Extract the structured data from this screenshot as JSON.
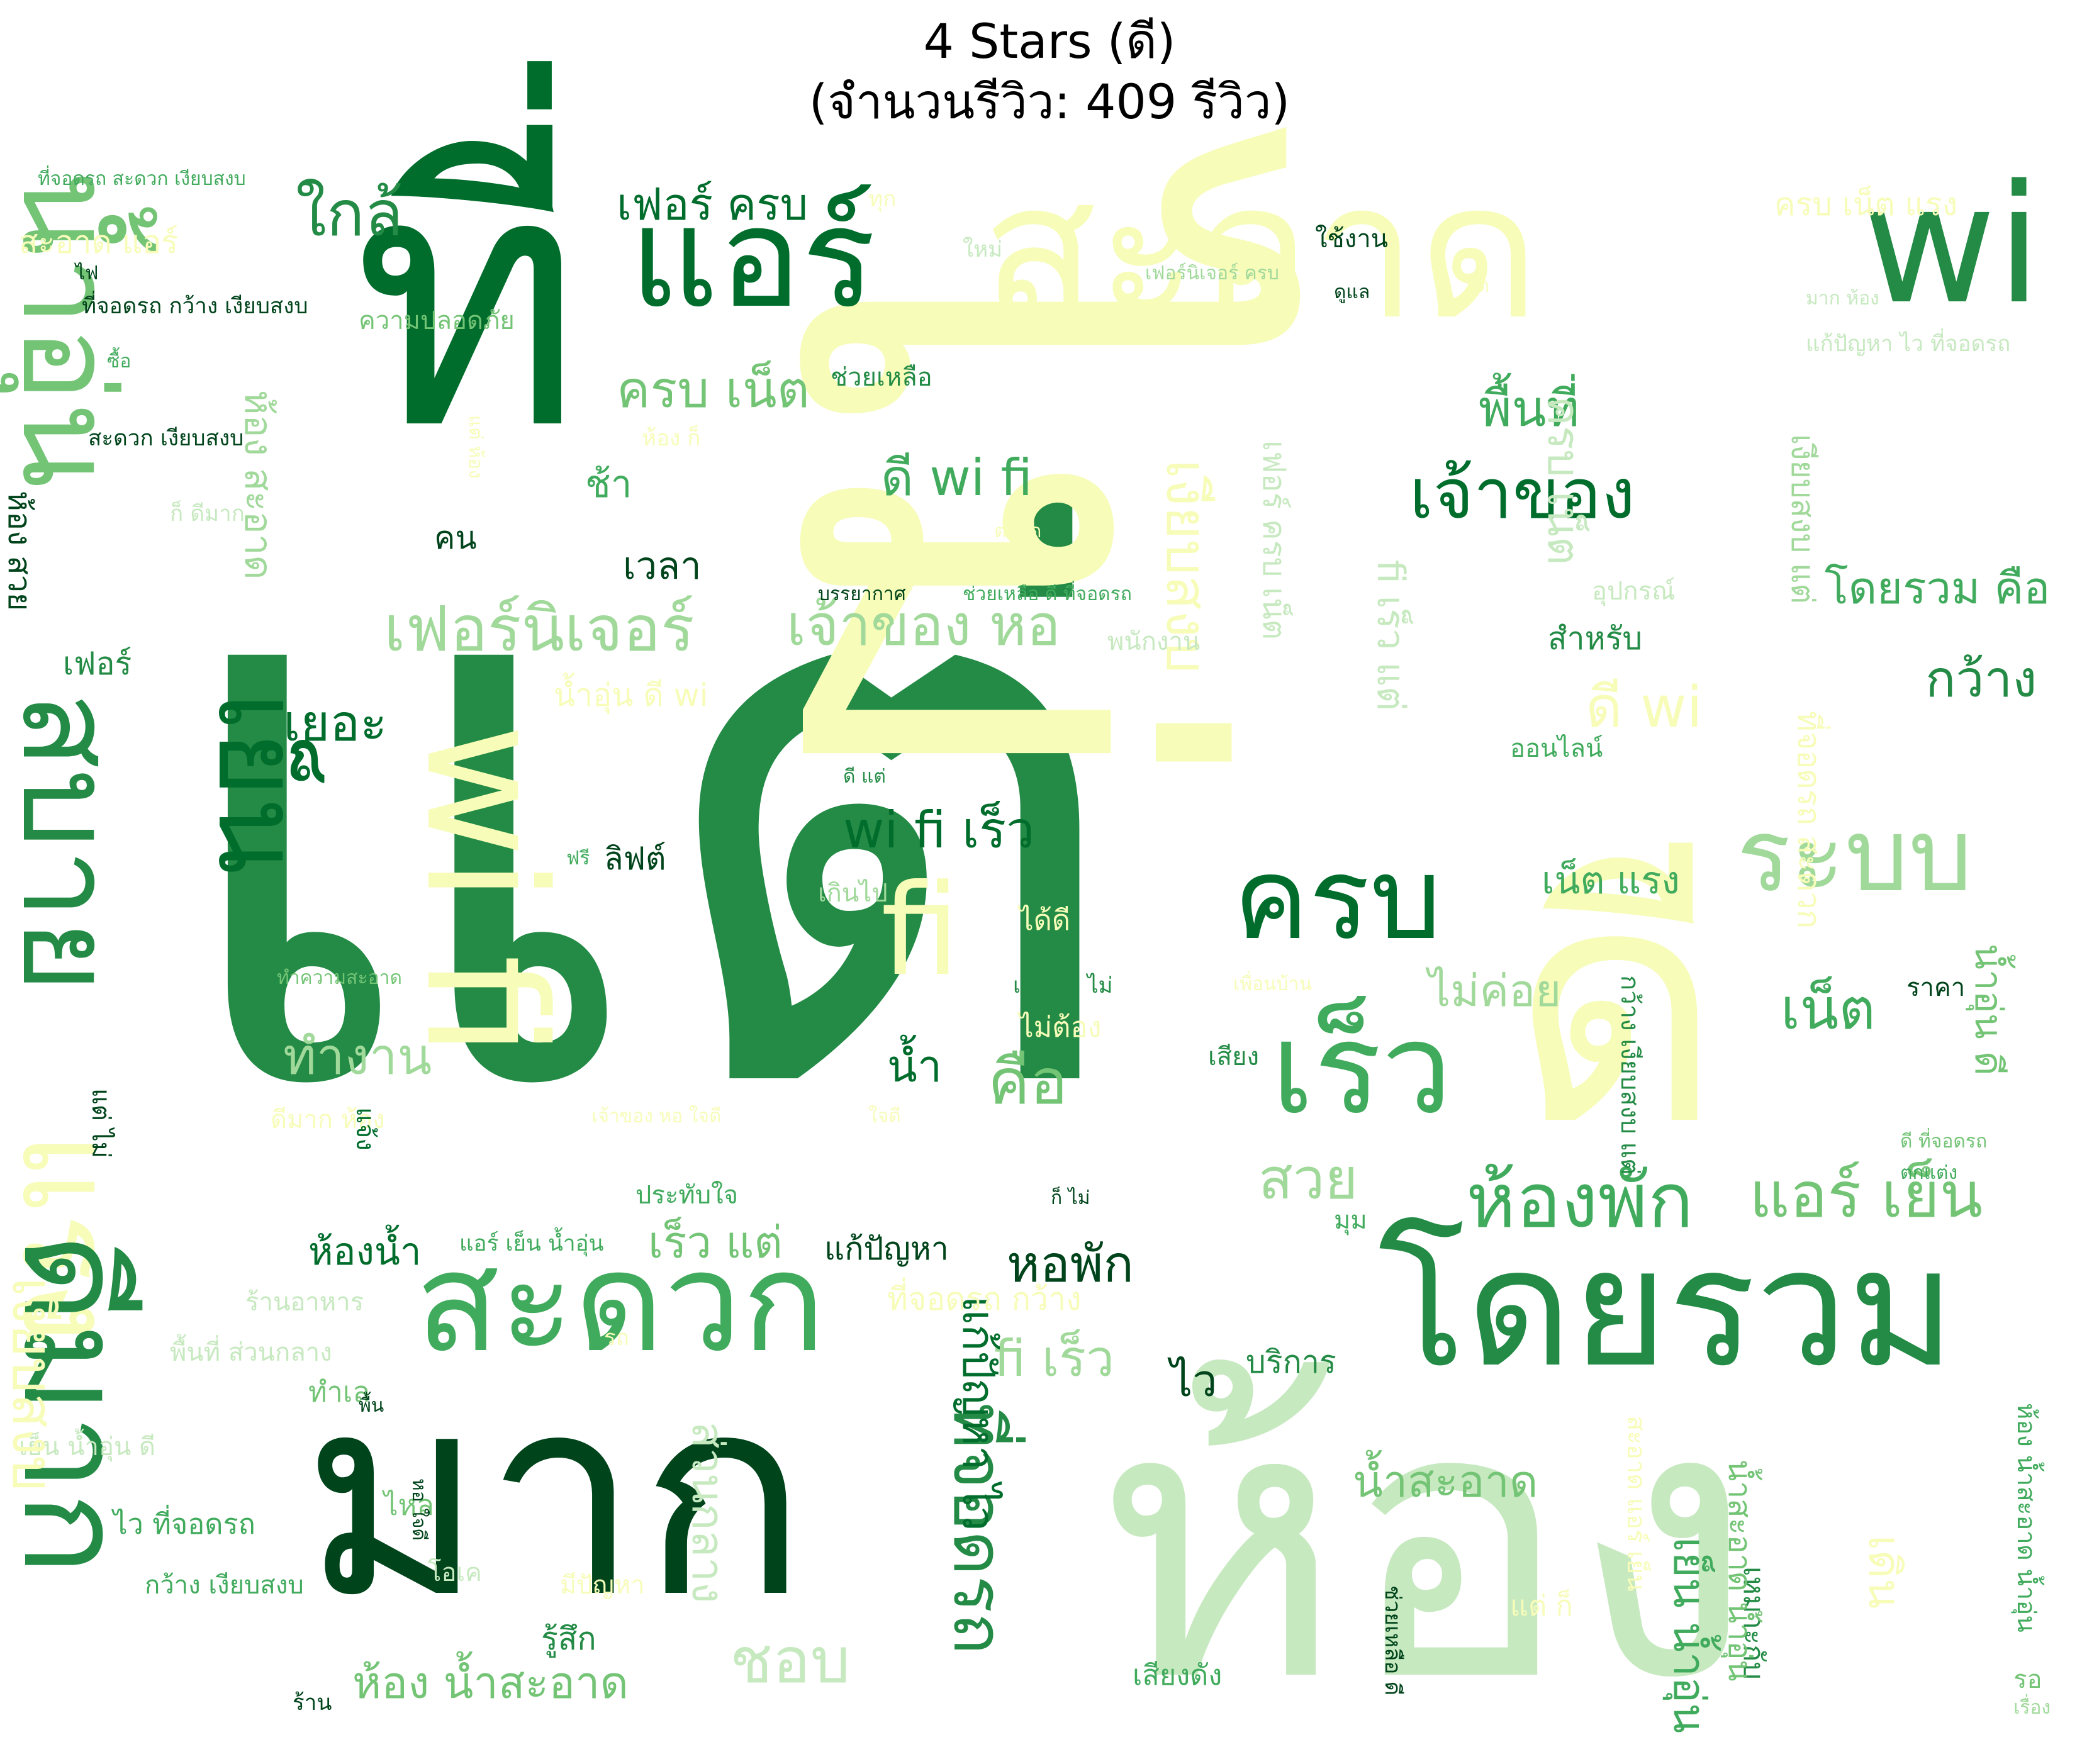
{
  "figure": {
    "title_line1": "4 Stars (ดี)",
    "title_line2": "(จำนวนรีวิว: 409 รีวิว)"
  },
  "palette": {
    "darkest": "#00441b",
    "dark": "#006d2c",
    "mid_dark": "#238b45",
    "mid": "#41ab5d",
    "mid_light": "#74c476",
    "light": "#a1d99b",
    "lighter": "#c7e9c0",
    "lightest": "#f7fcb9"
  },
  "words": [
    "แต่",
    "ไม่",
    "ห้อง",
    "ที่",
    "มาก",
    "ดี",
    "สะอาด",
    "wi fi",
    "wi",
    "น้ำอุ่น",
    "สบาย",
    "แรง",
    "ดีมาก",
    "แอร์",
    "ชอบ",
    "โดยรวม",
    "สะดวก",
    "เย็น",
    "ครบ",
    "เร็ว",
    "ระบบ",
    "ห้องพัก",
    "แอร์ เย็น",
    "fi",
    "เงียบสงบ",
    "เจ้าของ",
    "ใกล้",
    "ที่จอดรถ",
    "เฟอร์นิเจอร์",
    "เจ้าของ หอ",
    "กว้าง",
    "พื้นที่",
    "ดี wi fi",
    "wi fi เร็ว",
    "ครบ เน็ต",
    "เฟอร์ ครบ",
    "เน็ต แรง",
    "เน็ต",
    "หอพัก",
    "น้ำสะอาด",
    "ห้องน้ำ",
    "เร็ว แต่",
    "fi เร็ว",
    "ห้อง น้ำสะอาด",
    "โดยรวม คือ",
    "คือ",
    "สวย",
    "ไม่ค่อย",
    "ทำงาน",
    "เยอะ",
    "ส่วนกลาง",
    "สะอาด แอร์",
    "ห้อง สะอาด",
    "ครบ เน็ต แรง",
    "ไว",
    "น้ำ",
    "ช้า",
    "เวลา",
    "คน",
    "บริการ",
    "แก้ปัญหา",
    "รู้สึก",
    "ห้อง สวย",
    "เฟอร์",
    "สำหรับ",
    "ลิฟต์",
    "ใช้งาน",
    "ไฟ",
    "ซื้อ",
    "ช่วยเหลือ",
    "ความปลอดภัย",
    "ที่จอดรถ กว้าง เงียบสงบ",
    "สะดวก เงียบสงบ",
    "ที่จอดรถ สะดวก เงียบสงบ",
    "เฟอร์นิเจอร์ ครบ",
    "ดูแล",
    "จุด",
    "มาก ห้อง",
    "แก้ปัญหา ไว ที่จอดรถ",
    "ใหม่",
    "ทุก",
    "ห้อง ก็",
    "แต่ ห้อง",
    "ก็ ดีมาก",
    "ตลอด",
    "บรรยากาศ",
    "ช่วยเหลือ ดี ที่จอดรถ",
    "อุปกรณ์",
    "พนักงาน",
    "ออนไลน์",
    "ดี แต่",
    "ฟรี",
    "เกินไป",
    "ได้ดี",
    "เร็ว แต่ ไม่",
    "ไม่ต้อง",
    "ทำความสะอาด",
    "เพื่อนบ้าน",
    "ราคา",
    "เสียง",
    "ดีมาก ห้อง",
    "ใจดี",
    "เจ้าของ หอ ใจดี",
    "ประทับใจ",
    "ก็ ไม่",
    "ดี ที่จอดรถ",
    "ตกแต่ง",
    "มุม",
    "แจ้ง",
    "แอร์ เย็น น้ำอุ่น",
    "ร้านอาหาร",
    "รถ",
    "พื้นที่ ส่วนกลาง",
    "ทำเล",
    "พื้น",
    "เย็น น้ำอุ่น ดี",
    "ไหล",
    "หอ ใจดี",
    "ไว ที่จอดรถ",
    "โอเค",
    "กว้าง เงียบสงบ",
    "มีปัญหา",
    "ร้าน",
    "เสียงดัง",
    "ช่วยเหลือ ดี",
    "แก้ปัญหา ไว",
    "เย็น น้ำอุ่น",
    "เหมาะกับ",
    "แต่ ก็",
    "เดิน",
    "รอ",
    "เรื่อง",
    "ห้อง น้ำสะอาด น้ำอุ่น",
    "กว้าง เงียบสงบ แต่",
    "เฟอร์ ครบ เน็ต",
    "fi เร็ว แต่",
    "ที่จอดรถ สะดวก",
    "เงียบสงบ แต่",
    "น้ำอุ่น ดี wi",
    "น้ำอุ่น ดี",
    "ดี wi",
    "น้ำสะอาด น้ำอุ่น",
    "ที่จอดรถ กว้าง",
    "สะอาด แอร์ เย็น",
    "แต่ ไม่",
    "เงียบสงบ",
    "ครบ เน็ต"
  ]
}
